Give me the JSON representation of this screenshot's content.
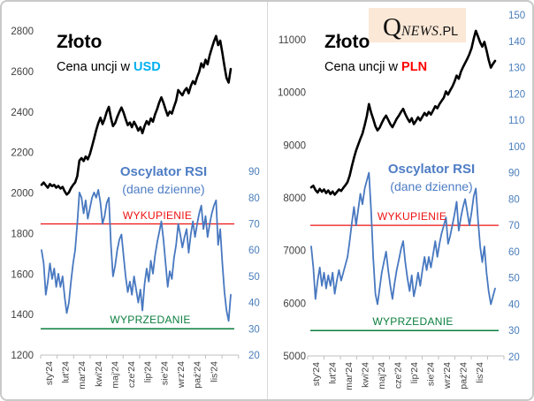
{
  "brand": {
    "logo_q": "Q",
    "logo_news": "NEWS",
    "logo_pl": ".PL",
    "logo_bg": "#fbe8d7"
  },
  "chart_data": [
    {
      "id": "gold-usd",
      "type": "line",
      "title": "Złoto",
      "subtitle_prefix": "Cena uncji w ",
      "currency": "USD",
      "currency_color": "#00b0f0",
      "rsi_title": "Oscylator RSI",
      "rsi_subtitle": "(dane dzienne)",
      "overbought": {
        "label": "WYKUPIENIE",
        "value": 70,
        "color": "#ee1111"
      },
      "oversold": {
        "label": "WYPRZEDANIE",
        "value": 30,
        "color": "#0b7e3e"
      },
      "x_categories": [
        "sty'24",
        "lut'24",
        "mar'24",
        "kwi'24",
        "maj'24",
        "cze'24",
        "lip'24",
        "sie'24",
        "wrz'24",
        "paź'24",
        "lis'24"
      ],
      "price_axis": {
        "min": 1200,
        "max": 2800,
        "step": 200,
        "side": "left",
        "label_color": "#404040"
      },
      "rsi_axis": {
        "min": 20,
        "max": 90,
        "step": 10,
        "side": "right",
        "label_color": "#4a7ebb"
      },
      "grid": false,
      "legend": "none",
      "series": [
        {
          "name": "price",
          "axis": "price",
          "color": "#000000",
          "width": 2.6,
          "values": [
            2040,
            2052,
            2038,
            2026,
            2044,
            2034,
            2040,
            2026,
            2035,
            2022,
            2030,
            2008,
            1992,
            2002,
            2024,
            2040,
            2052,
            2083,
            2160,
            2172,
            2158,
            2180,
            2166,
            2192,
            2230,
            2268,
            2310,
            2345,
            2372,
            2340,
            2365,
            2400,
            2425,
            2370,
            2330,
            2345,
            2375,
            2400,
            2422,
            2398,
            2365,
            2335,
            2348,
            2325,
            2352,
            2332,
            2308,
            2325,
            2295,
            2330,
            2355,
            2338,
            2368,
            2352,
            2388,
            2415,
            2448,
            2472,
            2445,
            2412,
            2382,
            2402,
            2392,
            2425,
            2455,
            2508,
            2495,
            2482,
            2505,
            2518,
            2492,
            2528,
            2552,
            2538,
            2572,
            2598,
            2640,
            2620,
            2658,
            2635,
            2680,
            2715,
            2748,
            2775,
            2730,
            2752,
            2692,
            2625,
            2568,
            2545,
            2612
          ]
        },
        {
          "name": "rsi",
          "axis": "rsi",
          "color": "#4878c0",
          "width": 1.8,
          "values": [
            60,
            55,
            43,
            48,
            55,
            49,
            53,
            46,
            51,
            46,
            50,
            42,
            36,
            40,
            48,
            55,
            60,
            70,
            82,
            80,
            74,
            79,
            72,
            76,
            80,
            82,
            80,
            83,
            78,
            70,
            73,
            78,
            80,
            62,
            50,
            54,
            60,
            64,
            66,
            58,
            50,
            44,
            48,
            43,
            50,
            45,
            40,
            45,
            37,
            47,
            53,
            48,
            56,
            51,
            58,
            63,
            67,
            71,
            64,
            55,
            46,
            52,
            49,
            57,
            62,
            70,
            66,
            61,
            65,
            68,
            59,
            66,
            71,
            65,
            70,
            74,
            77,
            68,
            73,
            65,
            70,
            74,
            77,
            79,
            62,
            68,
            55,
            44,
            37,
            33,
            43
          ]
        }
      ]
    },
    {
      "id": "gold-pln",
      "type": "line",
      "title": "Złoto",
      "subtitle_prefix": "Cena uncji w ",
      "currency": "PLN",
      "currency_color": "#ff0000",
      "rsi_title": "Oscylator RSI",
      "rsi_subtitle": "(dane dzienne)",
      "overbought": {
        "label": "WYKUPIENIE",
        "value": 70,
        "color": "#ee1111"
      },
      "oversold": {
        "label": "WYPRZEDANIE",
        "value": 30,
        "color": "#0b7e3e"
      },
      "x_categories": [
        "sty'24",
        "lut'24",
        "mar'24",
        "kwi'24",
        "maj'24",
        "cze'24",
        "lip'24",
        "sie'24",
        "wrz'24",
        "paź'24",
        "lis'24"
      ],
      "price_axis": {
        "min": 5000,
        "max": 11000,
        "step": 1000,
        "side": "left",
        "label_color": "#404040"
      },
      "rsi_axis": {
        "min": 20,
        "max": 150,
        "step": 10,
        "side": "right",
        "label_color": "#4a7ebb"
      },
      "grid": false,
      "legend": "none",
      "series": [
        {
          "name": "price",
          "axis": "price",
          "color": "#000000",
          "width": 2.6,
          "values": [
            8200,
            8230,
            8150,
            8100,
            8170,
            8115,
            8160,
            8090,
            8140,
            8070,
            8120,
            8060,
            8110,
            8160,
            8130,
            8190,
            8240,
            8300,
            8420,
            8600,
            8760,
            8900,
            9010,
            9120,
            9220,
            9380,
            9550,
            9780,
            9620,
            9500,
            9360,
            9280,
            9330,
            9420,
            9500,
            9560,
            9480,
            9400,
            9340,
            9420,
            9500,
            9560,
            9630,
            9690,
            9590,
            9510,
            9440,
            9510,
            9400,
            9460,
            9530,
            9470,
            9540,
            9610,
            9560,
            9630,
            9580,
            9660,
            9740,
            9700,
            9780,
            9840,
            9900,
            10020,
            9960,
            10040,
            10110,
            10200,
            10320,
            10260,
            10390,
            10480,
            10560,
            10640,
            10730,
            10840,
            11020,
            11170,
            11060,
            10950,
            10870,
            10960,
            10800,
            10620,
            10470,
            10540,
            10600
          ]
        },
        {
          "name": "rsi",
          "axis": "rsi",
          "color": "#4878c0",
          "width": 1.8,
          "values": [
            62,
            54,
            42,
            49,
            54,
            47,
            52,
            46,
            51,
            47,
            52,
            44,
            49,
            53,
            49,
            52,
            55,
            58,
            64,
            71,
            77,
            70,
            76,
            82,
            78,
            84,
            87,
            90,
            76,
            58,
            44,
            40,
            46,
            52,
            56,
            60,
            53,
            47,
            42,
            48,
            53,
            57,
            61,
            64,
            56,
            50,
            45,
            51,
            43,
            47,
            52,
            47,
            53,
            58,
            53,
            58,
            54,
            59,
            64,
            58,
            63,
            67,
            70,
            73,
            63,
            66,
            70,
            74,
            79,
            68,
            73,
            77,
            80,
            75,
            70,
            75,
            81,
            84,
            72,
            62,
            56,
            62,
            52,
            45,
            40,
            43,
            46
          ]
        }
      ]
    }
  ]
}
